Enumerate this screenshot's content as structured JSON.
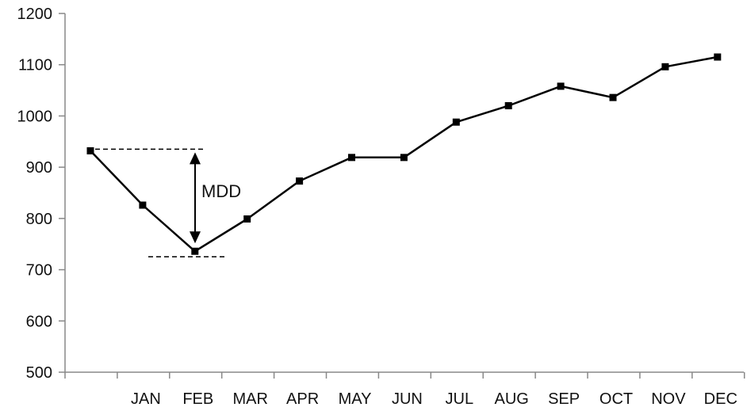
{
  "chart_data": {
    "type": "line",
    "x": [
      "",
      "JAN",
      "FEB",
      "MAR",
      "APR",
      "MAY",
      "JUN",
      "JUL",
      "AUG",
      "SEP",
      "OCT",
      "NOV",
      "DEC"
    ],
    "series": [
      {
        "values": [
          932,
          826,
          736,
          799,
          873,
          919,
          919,
          988,
          1020,
          1058,
          1036,
          1096,
          1115
        ]
      }
    ],
    "ylim": [
      500,
      1200
    ],
    "yticks": [
      500,
      600,
      700,
      800,
      900,
      1000,
      1100,
      1200
    ],
    "title": "",
    "xlabel": "",
    "ylabel": "",
    "grid": false,
    "annotations": [
      {
        "label": "MDD",
        "peak_value": 932,
        "trough_value": 736
      }
    ],
    "colors": {
      "line": "#000000",
      "axis": "#888888"
    }
  }
}
